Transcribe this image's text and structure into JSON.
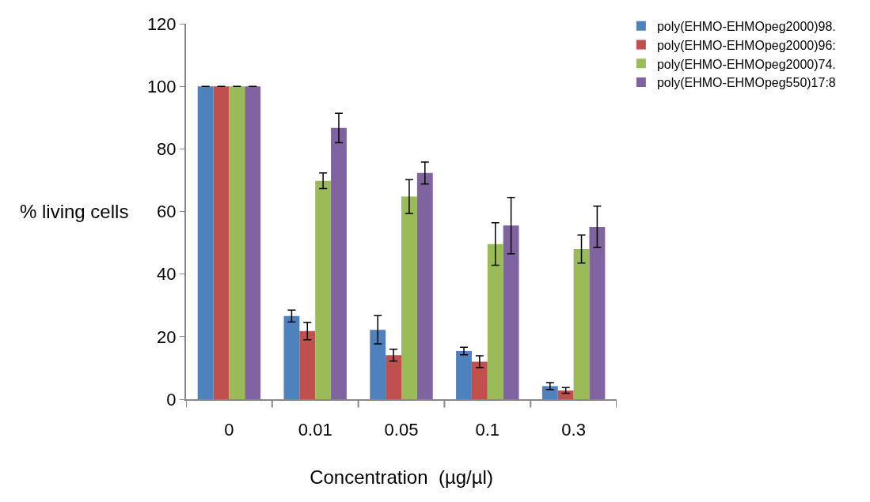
{
  "chart_data": {
    "type": "bar",
    "xlabel": "Concentration  (µg/µl)",
    "ylabel": "% living cells",
    "categories": [
      "0",
      "0.01",
      "0.05",
      "0.1",
      "0.3"
    ],
    "series": [
      {
        "name": "poly(EHMO-EHMOpeg2000)98.",
        "color": "#4f81bd",
        "values": [
          100,
          26.6,
          22.2,
          15.4,
          4.2
        ],
        "errors": [
          null,
          1.9,
          4.5,
          1.2,
          1.1
        ]
      },
      {
        "name": "poly(EHMO-EHMOpeg2000)96:",
        "color": "#c0504d",
        "values": [
          100,
          21.8,
          14.1,
          12.0,
          2.8
        ],
        "errors": [
          null,
          2.8,
          1.9,
          1.9,
          0.9
        ]
      },
      {
        "name": "poly(EHMO-EHMOpeg2000)74.",
        "color": "#9bbb59",
        "values": [
          100,
          69.8,
          64.8,
          49.6,
          48.0
        ],
        "errors": [
          null,
          2.5,
          5.4,
          6.8,
          4.5
        ]
      },
      {
        "name": "poly(EHMO-EHMOpeg550)17:8",
        "color": "#8064a2",
        "values": [
          100,
          86.7,
          72.3,
          55.5,
          55.1
        ],
        "errors": [
          null,
          4.7,
          3.5,
          9.0,
          6.6
        ]
      }
    ],
    "ylim": [
      0,
      120
    ],
    "yticks": [
      0,
      20,
      40,
      60,
      80,
      100,
      120
    ],
    "grid": false,
    "legend": "top right"
  }
}
